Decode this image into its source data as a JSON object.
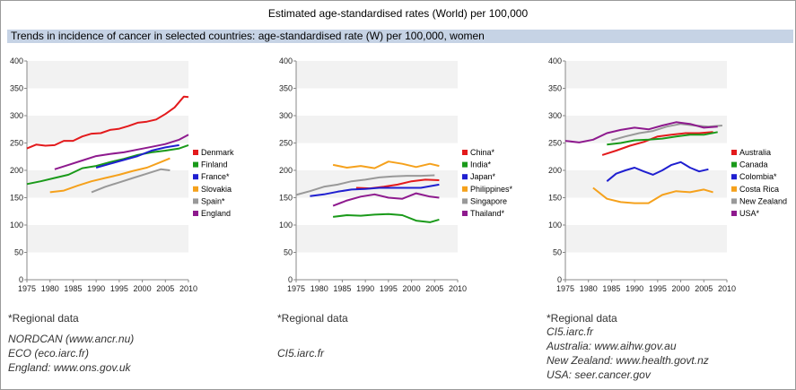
{
  "title": "Estimated age-standardised rates (World) per 100,000",
  "subtitle": "Trends in incidence of cancer in selected countries: age-standardised rate (W) per 100,000, women",
  "chart_data": [
    {
      "type": "line",
      "xlim": [
        1975,
        2010
      ],
      "ylim": [
        0,
        400
      ],
      "xticks": [
        1975,
        1980,
        1985,
        1990,
        1995,
        2000,
        2005,
        2010
      ],
      "yticks": [
        0,
        50,
        100,
        150,
        200,
        250,
        300,
        350,
        400
      ],
      "grid": "horizontal bands",
      "legend": "right",
      "series": [
        {
          "name": "Denmark",
          "color": "#e31a1c",
          "x": [
            1975,
            1977,
            1979,
            1981,
            1983,
            1985,
            1987,
            1989,
            1991,
            1993,
            1995,
            1997,
            1999,
            2001,
            2003,
            2005,
            2007,
            2009,
            2010
          ],
          "y": [
            240,
            247,
            245,
            246,
            254,
            254,
            262,
            267,
            268,
            274,
            276,
            281,
            287,
            289,
            293,
            303,
            315,
            335,
            334
          ]
        },
        {
          "name": "Finland",
          "color": "#1a9a1a",
          "x": [
            1975,
            1978,
            1981,
            1984,
            1987,
            1990,
            1993,
            1996,
            1999,
            2002,
            2005,
            2008,
            2010
          ],
          "y": [
            175,
            180,
            186,
            192,
            204,
            208,
            215,
            221,
            228,
            233,
            236,
            240,
            246
          ]
        },
        {
          "name": "France*",
          "color": "#1f1fd0",
          "x": [
            1990,
            1993,
            1996,
            1999,
            2002,
            2005,
            2008
          ],
          "y": [
            205,
            212,
            219,
            226,
            236,
            242,
            246
          ]
        },
        {
          "name": "Slovakia",
          "color": "#f5a11c",
          "x": [
            1980,
            1983,
            1986,
            1989,
            1992,
            1995,
            1998,
            2001,
            2004,
            2006
          ],
          "y": [
            160,
            163,
            172,
            180,
            186,
            192,
            199,
            205,
            215,
            222
          ]
        },
        {
          "name": "Spain*",
          "color": "#999999",
          "x": [
            1989,
            1992,
            1995,
            1998,
            2001,
            2004,
            2006
          ],
          "y": [
            160,
            170,
            178,
            186,
            194,
            202,
            200
          ]
        },
        {
          "name": "England",
          "color": "#8e1a8e",
          "x": [
            1981,
            1984,
            1987,
            1990,
            1993,
            1996,
            1999,
            2002,
            2005,
            2008,
            2010
          ],
          "y": [
            202,
            210,
            218,
            226,
            230,
            233,
            238,
            243,
            248,
            256,
            265
          ]
        }
      ]
    },
    {
      "type": "line",
      "xlim": [
        1975,
        2010
      ],
      "ylim": [
        0,
        400
      ],
      "xticks": [
        1975,
        1980,
        1985,
        1990,
        1995,
        2000,
        2005,
        2010
      ],
      "yticks": [
        0,
        50,
        100,
        150,
        200,
        250,
        300,
        350,
        400
      ],
      "grid": "horizontal bands",
      "legend": "right",
      "series": [
        {
          "name": "China*",
          "color": "#e31a1c",
          "x": [
            1988,
            1991,
            1994,
            1997,
            2000,
            2003,
            2006
          ],
          "y": [
            168,
            167,
            170,
            174,
            180,
            183,
            182
          ]
        },
        {
          "name": "India*",
          "color": "#1a9a1a",
          "x": [
            1983,
            1986,
            1989,
            1992,
            1995,
            1998,
            2001,
            2004,
            2006
          ],
          "y": [
            115,
            118,
            117,
            119,
            120,
            118,
            108,
            105,
            110
          ]
        },
        {
          "name": "Japan*",
          "color": "#1f1fd0",
          "x": [
            1978,
            1981,
            1984,
            1987,
            1990,
            1993,
            1996,
            1999,
            2002,
            2006
          ],
          "y": [
            153,
            156,
            161,
            165,
            166,
            168,
            168,
            168,
            168,
            174
          ]
        },
        {
          "name": "Philippines*",
          "color": "#f5a11c",
          "x": [
            1983,
            1986,
            1989,
            1992,
            1995,
            1998,
            2001,
            2004,
            2006
          ],
          "y": [
            210,
            205,
            208,
            204,
            216,
            212,
            206,
            212,
            208
          ]
        },
        {
          "name": "Singapore",
          "color": "#999999",
          "x": [
            1975,
            1978,
            1981,
            1984,
            1987,
            1990,
            1993,
            1996,
            1999,
            2002,
            2005
          ],
          "y": [
            155,
            162,
            170,
            174,
            180,
            183,
            187,
            189,
            190,
            190,
            191
          ]
        },
        {
          "name": "Thailand*",
          "color": "#8e1a8e",
          "x": [
            1983,
            1986,
            1989,
            1992,
            1995,
            1998,
            2001,
            2004,
            2006
          ],
          "y": [
            135,
            145,
            152,
            156,
            150,
            148,
            158,
            152,
            150
          ]
        }
      ]
    },
    {
      "type": "line",
      "xlim": [
        1975,
        2010
      ],
      "ylim": [
        0,
        400
      ],
      "xticks": [
        1975,
        1980,
        1985,
        1990,
        1995,
        2000,
        2005,
        2010
      ],
      "yticks": [
        0,
        50,
        100,
        150,
        200,
        250,
        300,
        350,
        400
      ],
      "grid": "horizontal bands",
      "legend": "right",
      "series": [
        {
          "name": "Australia",
          "color": "#e31a1c",
          "x": [
            1983,
            1986,
            1989,
            1992,
            1995,
            1998,
            2001,
            2004,
            2007
          ],
          "y": [
            228,
            236,
            245,
            252,
            262,
            265,
            268,
            268,
            270
          ]
        },
        {
          "name": "Canada",
          "color": "#1a9a1a",
          "x": [
            1984,
            1987,
            1990,
            1993,
            1996,
            1999,
            2002,
            2005,
            2008
          ],
          "y": [
            247,
            250,
            255,
            256,
            258,
            262,
            265,
            265,
            270
          ]
        },
        {
          "name": "Colombia*",
          "color": "#1f1fd0",
          "x": [
            1984,
            1986,
            1988,
            1990,
            1992,
            1994,
            1996,
            1998,
            2000,
            2002,
            2004,
            2006
          ],
          "y": [
            180,
            194,
            200,
            205,
            198,
            192,
            200,
            210,
            215,
            205,
            198,
            202
          ]
        },
        {
          "name": "Costa Rica",
          "color": "#f5a11c",
          "x": [
            1981,
            1984,
            1987,
            1990,
            1993,
            1996,
            1999,
            2002,
            2005,
            2007
          ],
          "y": [
            168,
            148,
            142,
            140,
            140,
            155,
            162,
            160,
            165,
            160
          ]
        },
        {
          "name": "New Zealand",
          "color": "#999999",
          "x": [
            1985,
            1988,
            1991,
            1994,
            1997,
            2000,
            2003,
            2006,
            2009
          ],
          "y": [
            255,
            262,
            268,
            272,
            280,
            285,
            282,
            280,
            282
          ]
        },
        {
          "name": "USA*",
          "color": "#8e1a8e",
          "x": [
            1975,
            1978,
            1981,
            1984,
            1987,
            1990,
            1993,
            1996,
            1999,
            2002,
            2005,
            2008
          ],
          "y": [
            254,
            251,
            256,
            268,
            274,
            278,
            275,
            282,
            288,
            285,
            278,
            280
          ]
        }
      ]
    }
  ],
  "notes": [
    "*Regional data",
    "*Regional data",
    "*Regional data"
  ],
  "sources": [
    [
      "NORDCAN (www.ancr.nu)",
      "ECO (eco.iarc.fr)",
      "England: www.ons.gov.uk"
    ],
    [
      "CI5.iarc.fr"
    ],
    [
      "CI5.iarc.fr",
      "Australia: www.aihw.gov.au",
      "New Zealand: www.health.govt.nz",
      "USA: seer.cancer.gov"
    ]
  ]
}
